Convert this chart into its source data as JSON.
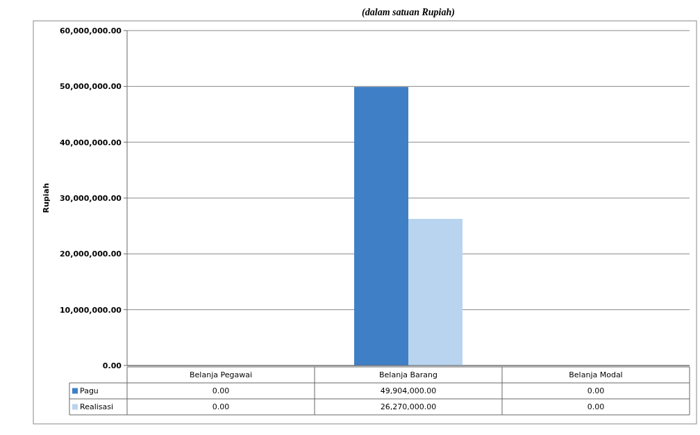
{
  "chart_data": {
    "type": "bar",
    "title": "(dalam satuan Rupiah)",
    "ylabel": "Rupiah",
    "categories": [
      "Belanja Pegawai",
      "Belanja Barang",
      "Belanja Modal"
    ],
    "series": [
      {
        "name": "Pagu",
        "color": "#3f7fc6",
        "values": [
          0,
          49904000,
          0
        ],
        "value_labels": [
          "0.00",
          "49,904,000.00",
          "0.00"
        ]
      },
      {
        "name": "Realisasi",
        "color": "#b8d4ee",
        "values": [
          0,
          26270000,
          0
        ],
        "value_labels": [
          "0.00",
          "26,270,000.00",
          "0.00"
        ]
      }
    ],
    "ylim": [
      0,
      60000000
    ],
    "yticks": [
      {
        "value": 0,
        "label": "0.00"
      },
      {
        "value": 10000000,
        "label": "10,000,000.00"
      },
      {
        "value": 20000000,
        "label": "20,000,000.00"
      },
      {
        "value": 30000000,
        "label": "30,000,000.00"
      },
      {
        "value": 40000000,
        "label": "40,000,000.00"
      },
      {
        "value": 50000000,
        "label": "50,000,000.00"
      },
      {
        "value": 60000000,
        "label": "60,000,000.00"
      }
    ],
    "grid": "y",
    "legend": "bottom"
  }
}
